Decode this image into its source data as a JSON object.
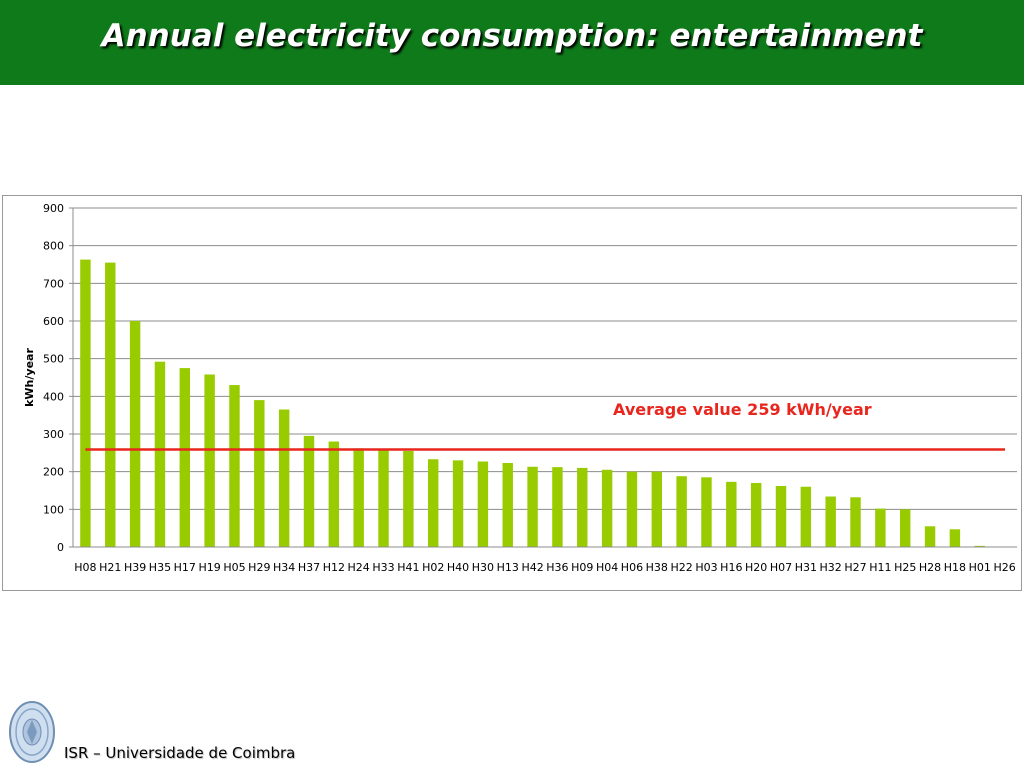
{
  "header": {
    "title": "Annual electricity consumption: entertainment"
  },
  "footer": {
    "institution": "ISR – Universidade de Coimbra"
  },
  "colors": {
    "header_bg": "#0f7a1a",
    "bar": "#99cc00",
    "average_line": "#e8261e",
    "annotation": "#e8261e"
  },
  "chart_data": {
    "type": "bar",
    "title": "",
    "xlabel": "",
    "ylabel": "kWh/year",
    "ylim": [
      0,
      900
    ],
    "yticks": [
      0,
      100,
      200,
      300,
      400,
      500,
      600,
      700,
      800,
      900
    ],
    "grid": true,
    "categories": [
      "H08",
      "H21",
      "H39",
      "H35",
      "H17",
      "H19",
      "H05",
      "H29",
      "H34",
      "H37",
      "H12",
      "H24",
      "H33",
      "H41",
      "H02",
      "H40",
      "H30",
      "H13",
      "H42",
      "H36",
      "H09",
      "H04",
      "H06",
      "H38",
      "H22",
      "H03",
      "H16",
      "H20",
      "H07",
      "H31",
      "H32",
      "H27",
      "H11",
      "H25",
      "H28",
      "H18",
      "H01",
      "H26"
    ],
    "values": [
      763,
      755,
      600,
      492,
      475,
      458,
      430,
      390,
      365,
      295,
      280,
      262,
      258,
      255,
      233,
      230,
      227,
      223,
      213,
      212,
      210,
      205,
      200,
      200,
      188,
      185,
      173,
      170,
      162,
      160,
      134,
      132,
      102,
      100,
      55,
      47,
      3,
      0
    ],
    "average": {
      "value": 259,
      "label": "Average value 259 kWh/year"
    }
  }
}
